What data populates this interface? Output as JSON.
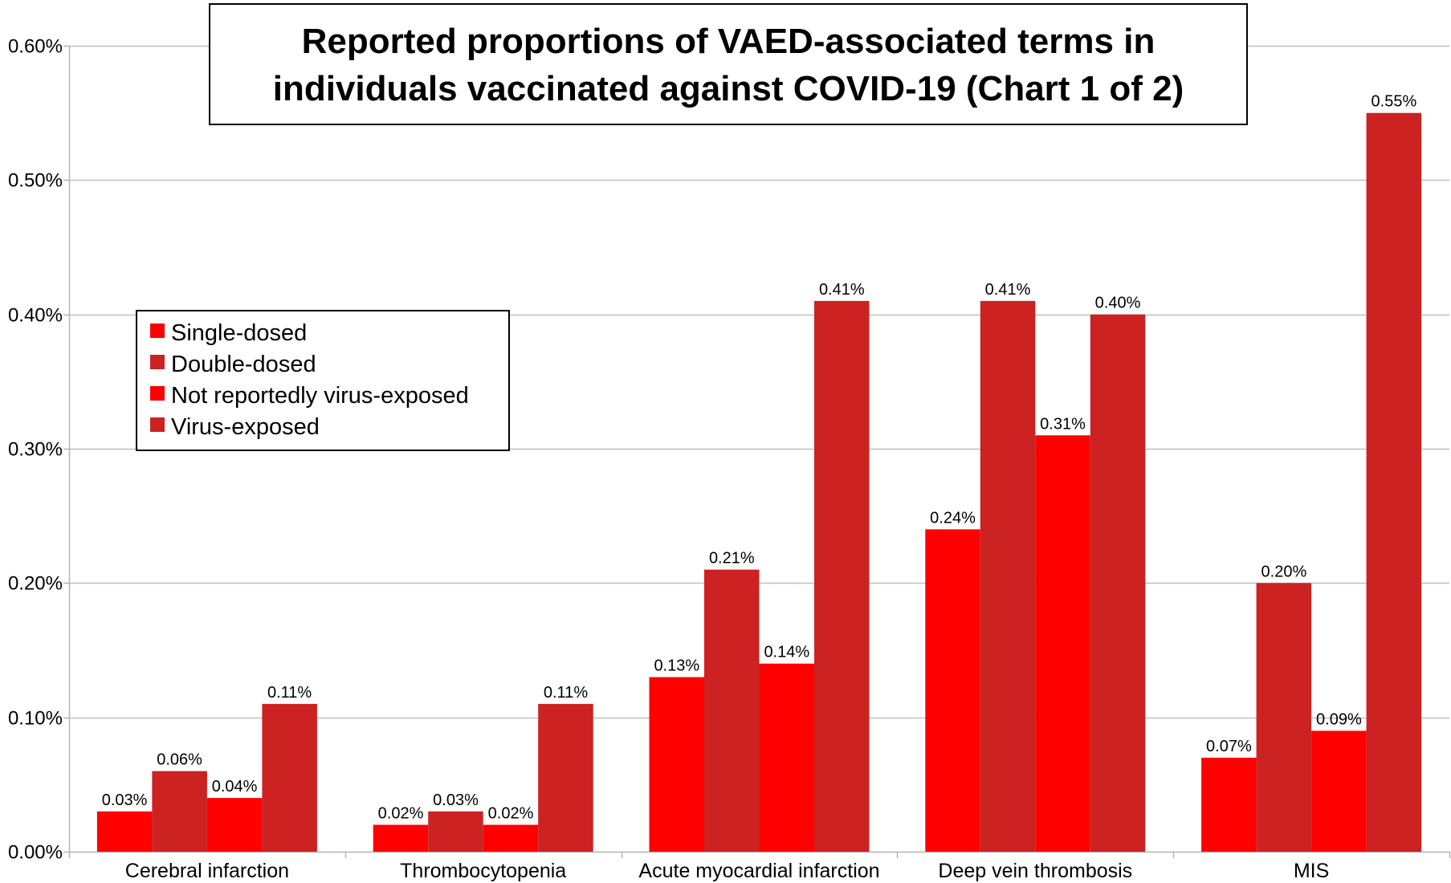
{
  "chart_data": {
    "type": "bar",
    "title_lines": [
      "Reported proportions of VAED-associated terms in",
      "individuals vaccinated against COVID-19 (Chart 1 of 2)"
    ],
    "categories": [
      "Cerebral infarction",
      "Thrombocytopenia",
      "Acute myocardial infarction",
      "Deep vein thrombosis",
      "MIS"
    ],
    "series": [
      {
        "name": "Single-dosed",
        "color": "#ff0000",
        "values": [
          0.03,
          0.02,
          0.13,
          0.24,
          0.07
        ]
      },
      {
        "name": "Double-dosed",
        "color": "#cc2222",
        "values": [
          0.06,
          0.03,
          0.21,
          0.41,
          0.2
        ]
      },
      {
        "name": "Not reportedly virus-exposed",
        "color": "#ff0000",
        "values": [
          0.04,
          0.02,
          0.14,
          0.31,
          0.09
        ]
      },
      {
        "name": "Virus-exposed",
        "color": "#cc2222",
        "values": [
          0.11,
          0.11,
          0.41,
          0.4,
          0.55
        ]
      }
    ],
    "value_labels": [
      [
        "0.03%",
        "0.02%",
        "0.13%",
        "0.24%",
        "0.07%"
      ],
      [
        "0.06%",
        "0.03%",
        "0.21%",
        "0.41%",
        "0.20%"
      ],
      [
        "0.04%",
        "0.02%",
        "0.14%",
        "0.31%",
        "0.09%"
      ],
      [
        "0.11%",
        "0.11%",
        "0.41%",
        "0.40%",
        "0.55%"
      ]
    ],
    "y_ticks": [
      0,
      0.1,
      0.2,
      0.3,
      0.4,
      0.5,
      0.6
    ],
    "y_tick_labels": [
      "0.00%",
      "0.10%",
      "0.20%",
      "0.30%",
      "0.40%",
      "0.50%",
      "0.60%"
    ],
    "ylim": [
      0,
      0.6
    ],
    "xlabel": "",
    "ylabel": "",
    "grid": true,
    "legend_position": "left"
  }
}
